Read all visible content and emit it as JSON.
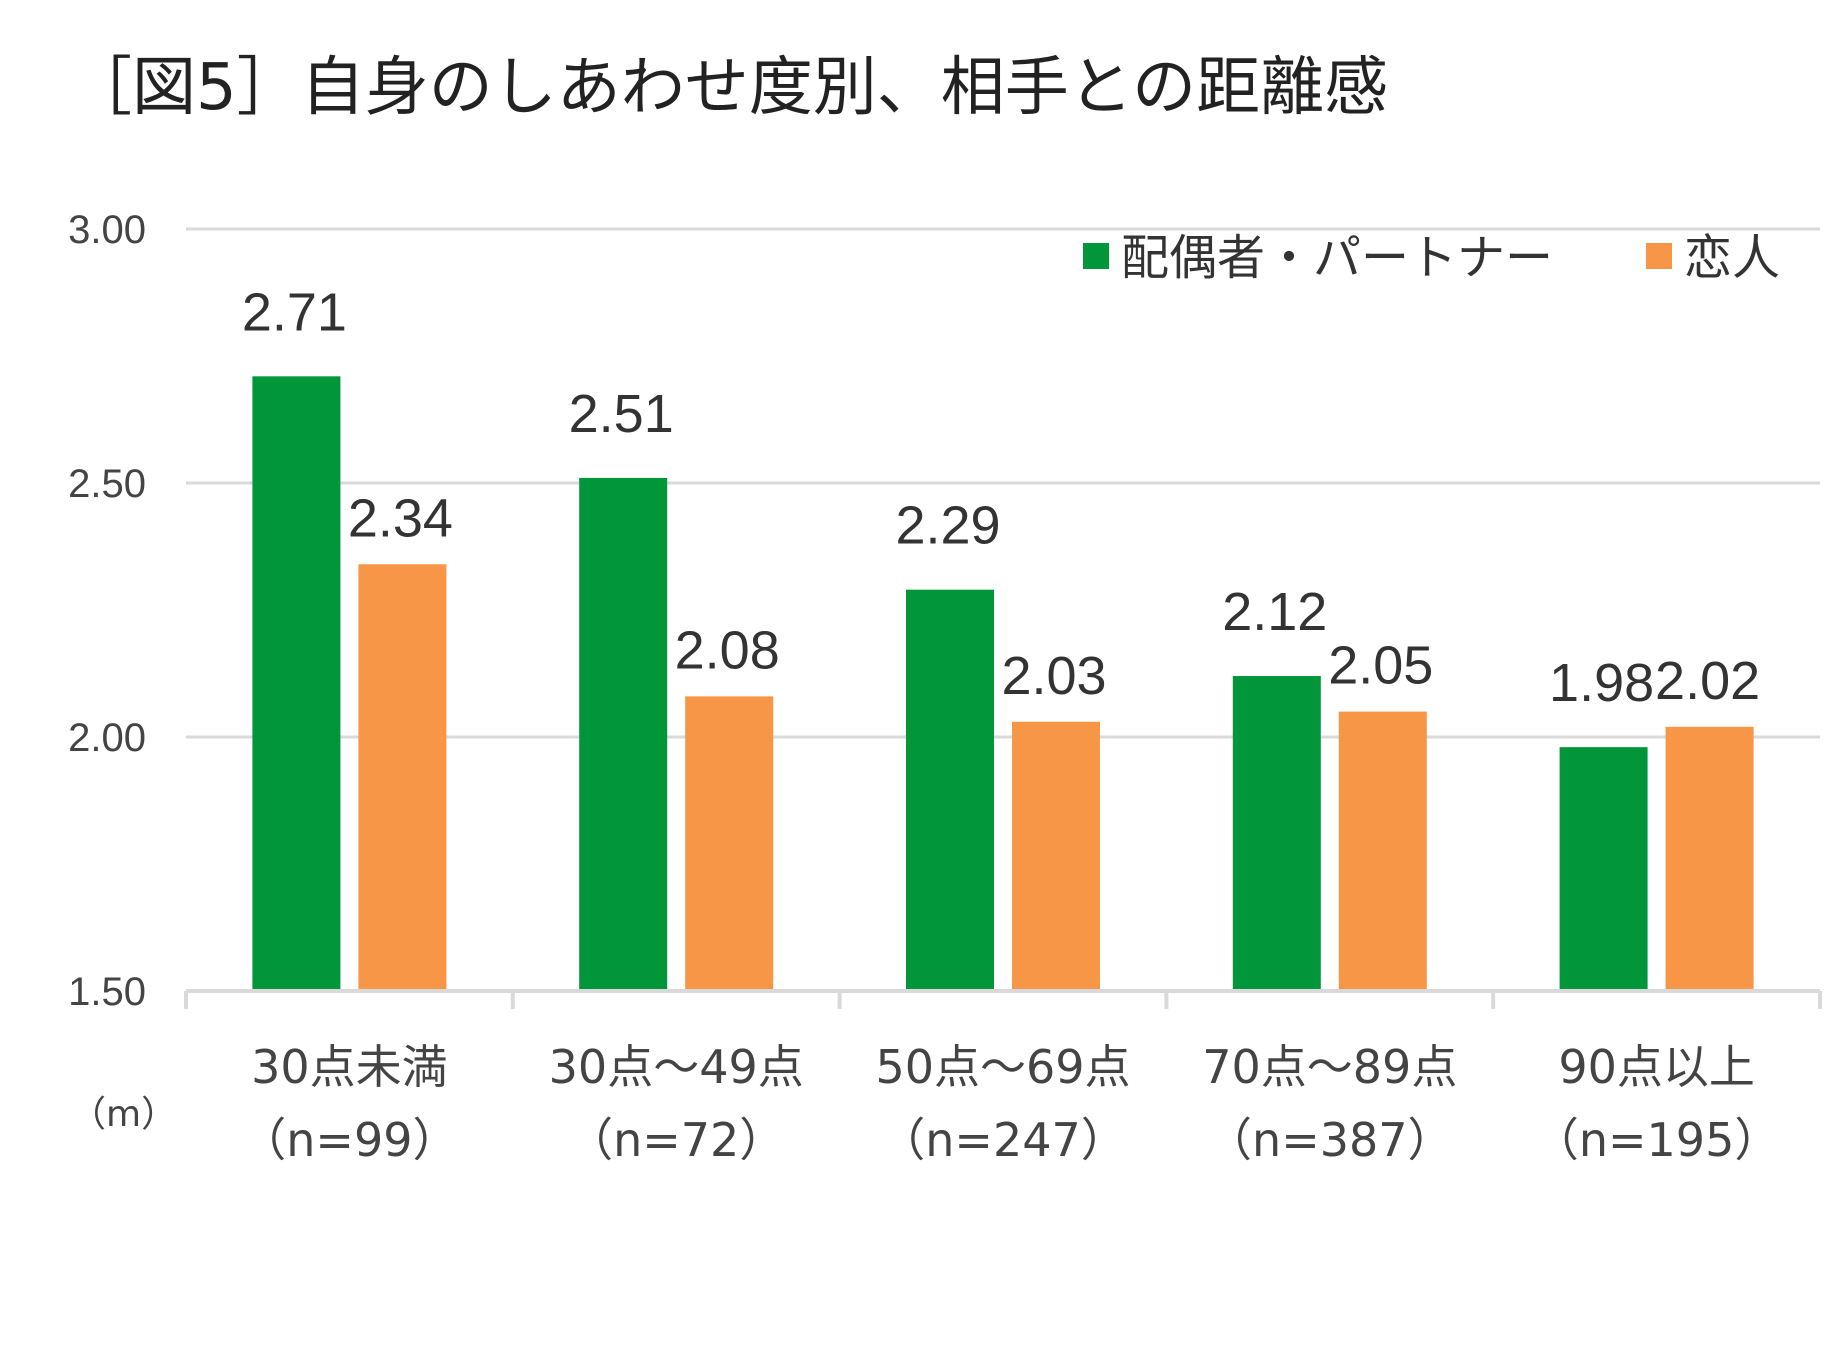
{
  "title": "［図5］自身のしあわせ度別、相手との距離感",
  "unit_label": "（m）",
  "colors": {
    "series0": "#009639",
    "series1": "#F79646",
    "grid": "#D9D9D9",
    "axis": "#D9D9D9"
  },
  "chart_data": {
    "type": "bar",
    "title": "［図5］自身のしあわせ度別、相手との距離感",
    "xlabel": "",
    "ylabel": "（m）",
    "ylim": [
      1.5,
      3.0
    ],
    "yticks": [
      "1.50",
      "2.00",
      "2.50",
      "3.00"
    ],
    "ytick_values": [
      1.5,
      2.0,
      2.5,
      3.0
    ],
    "grid": true,
    "legend_position": "top-right",
    "categories": [
      "30点未満",
      "30点～49点",
      "50点～69点",
      "70点～89点",
      "90点以上"
    ],
    "category_sublabels": [
      "（n=99）",
      "（n=72）",
      "（n=247）",
      "（n=387）",
      "（n=195）"
    ],
    "series": [
      {
        "name": "配偶者・パートナー",
        "values": [
          2.71,
          2.51,
          2.29,
          2.12,
          1.98
        ],
        "labels": [
          "2.71",
          "2.51",
          "2.29",
          "2.12",
          "1.98"
        ]
      },
      {
        "name": "恋人",
        "values": [
          2.34,
          2.08,
          2.03,
          2.05,
          2.02
        ],
        "labels": [
          "2.34",
          "2.08",
          "2.03",
          "2.05",
          "2.02"
        ]
      }
    ]
  }
}
